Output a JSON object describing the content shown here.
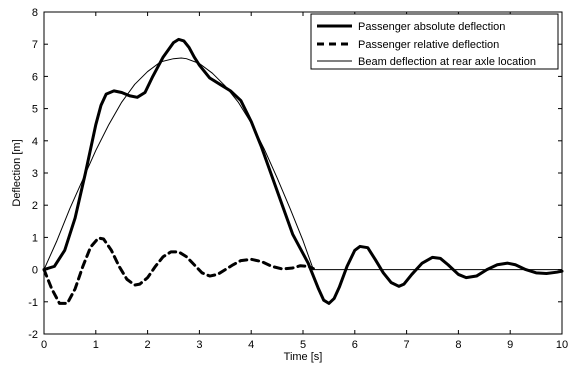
{
  "chart_data": {
    "type": "line",
    "xlabel": "Time [s]",
    "ylabel": "Deflection [m]",
    "xlim": [
      0,
      10
    ],
    "ylim": [
      -2,
      8
    ],
    "xticks": [
      0,
      1,
      2,
      3,
      4,
      5,
      6,
      7,
      8,
      9,
      10
    ],
    "yticks": [
      -2,
      -1,
      0,
      1,
      2,
      3,
      4,
      5,
      6,
      7,
      8
    ],
    "grid": false,
    "legend_position": "top-right",
    "series": [
      {
        "name": "Passenger absolute deflection",
        "style": "solid-thick",
        "color": "#000000",
        "x": [
          0,
          0.2,
          0.4,
          0.6,
          0.8,
          1.0,
          1.1,
          1.2,
          1.35,
          1.5,
          1.65,
          1.8,
          1.95,
          2.1,
          2.3,
          2.5,
          2.6,
          2.7,
          2.8,
          2.9,
          3.0,
          3.2,
          3.4,
          3.6,
          3.8,
          4.0,
          4.2,
          4.4,
          4.6,
          4.8,
          4.95,
          5.1,
          5.2,
          5.3,
          5.4,
          5.5,
          5.6,
          5.7,
          5.85,
          6.0,
          6.1,
          6.25,
          6.4,
          6.55,
          6.7,
          6.85,
          6.95,
          7.1,
          7.3,
          7.5,
          7.65,
          7.8,
          8.0,
          8.15,
          8.35,
          8.55,
          8.75,
          8.95,
          9.1,
          9.3,
          9.5,
          9.7,
          9.9,
          10.0
        ],
        "y": [
          0,
          0.1,
          0.6,
          1.6,
          3.0,
          4.5,
          5.1,
          5.45,
          5.55,
          5.5,
          5.4,
          5.35,
          5.5,
          6.0,
          6.6,
          7.05,
          7.15,
          7.1,
          6.9,
          6.6,
          6.35,
          5.95,
          5.75,
          5.55,
          5.25,
          4.6,
          3.8,
          2.9,
          2.0,
          1.1,
          0.65,
          0.2,
          -0.2,
          -0.6,
          -0.95,
          -1.05,
          -0.9,
          -0.55,
          0.1,
          0.6,
          0.72,
          0.68,
          0.3,
          -0.1,
          -0.4,
          -0.52,
          -0.45,
          -0.15,
          0.2,
          0.38,
          0.35,
          0.15,
          -0.15,
          -0.25,
          -0.2,
          0,
          0.15,
          0.2,
          0.15,
          0,
          -0.1,
          -0.12,
          -0.08,
          -0.05
        ]
      },
      {
        "name": "Passenger relative deflection",
        "style": "dashed-thick",
        "color": "#000000",
        "x": [
          0,
          0.15,
          0.3,
          0.45,
          0.6,
          0.75,
          0.9,
          1.05,
          1.15,
          1.3,
          1.45,
          1.6,
          1.75,
          1.85,
          2.0,
          2.15,
          2.3,
          2.45,
          2.6,
          2.75,
          2.9,
          3.05,
          3.2,
          3.35,
          3.5,
          3.65,
          3.8,
          4.0,
          4.2,
          4.4,
          4.6,
          4.8,
          4.95,
          5.1,
          5.2
        ],
        "y": [
          0,
          -0.6,
          -1.05,
          -1.05,
          -0.6,
          0.1,
          0.7,
          0.98,
          0.95,
          0.6,
          0.1,
          -0.3,
          -0.48,
          -0.45,
          -0.25,
          0.1,
          0.4,
          0.55,
          0.55,
          0.4,
          0.15,
          -0.1,
          -0.2,
          -0.15,
          0,
          0.15,
          0.28,
          0.32,
          0.25,
          0.1,
          0.02,
          0.05,
          0.12,
          0.1,
          0.03
        ]
      },
      {
        "name": "Beam deflection at rear axle location",
        "style": "solid-thin",
        "color": "#000000",
        "x": [
          0,
          0.25,
          0.5,
          0.75,
          1.0,
          1.25,
          1.5,
          1.75,
          2.0,
          2.25,
          2.5,
          2.65,
          2.75,
          3.0,
          3.25,
          3.5,
          3.75,
          4.0,
          4.25,
          4.5,
          4.75,
          5.0,
          5.1,
          5.2,
          5.5,
          6.0,
          7.0,
          8.0,
          9.0,
          10.0
        ],
        "y": [
          0,
          0.9,
          1.9,
          2.8,
          3.7,
          4.5,
          5.2,
          5.75,
          6.15,
          6.45,
          6.55,
          6.57,
          6.55,
          6.4,
          6.1,
          5.7,
          5.2,
          4.55,
          3.75,
          2.85,
          1.9,
          0.9,
          0.45,
          0,
          0,
          0,
          0,
          0,
          0,
          0
        ]
      }
    ]
  }
}
